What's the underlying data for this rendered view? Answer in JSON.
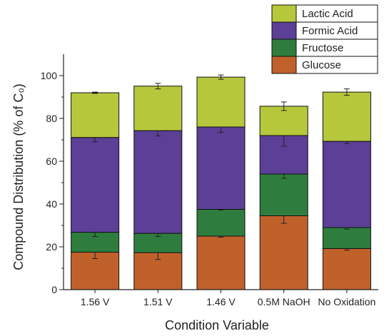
{
  "chart_data": {
    "type": "bar",
    "stacked": true,
    "categories": [
      "1.56 V",
      "1.51 V",
      "1.46 V",
      "0.5M NaOH",
      "No Oxidation"
    ],
    "series": [
      {
        "name": "Glucose",
        "color": "#c0612b",
        "values": [
          17.5,
          17.3,
          25.0,
          34.5,
          19.2
        ],
        "errors": [
          3.0,
          3.2,
          0.5,
          3.5,
          0.8
        ]
      },
      {
        "name": "Fructose",
        "color": "#2e7d3e",
        "values": [
          9.3,
          9.0,
          12.5,
          19.5,
          9.8
        ],
        "errors": [
          2.0,
          1.5,
          0.3,
          2.0,
          0.7
        ]
      },
      {
        "name": "Formic Acid",
        "color": "#5c3f96",
        "values": [
          44.3,
          48.0,
          38.5,
          18.0,
          40.3
        ],
        "errors": [
          2.0,
          2.5,
          2.5,
          5.0,
          1.0
        ]
      },
      {
        "name": "Lactic Acid",
        "color": "#b7c73c",
        "values": [
          20.9,
          20.8,
          23.3,
          13.7,
          23.0
        ],
        "errors": [
          0.3,
          1.3,
          1.0,
          2.0,
          1.5
        ]
      }
    ],
    "xlabel": "Condition Variable",
    "ylabel": "Compound Distribution (% of C₀)",
    "ylim": [
      0,
      110
    ],
    "yticks": [
      0,
      20,
      40,
      60,
      80,
      100
    ],
    "grid": false,
    "legend_position": "top-right",
    "legend_order": [
      "Lactic Acid",
      "Formic Acid",
      "Fructose",
      "Glucose"
    ]
  }
}
